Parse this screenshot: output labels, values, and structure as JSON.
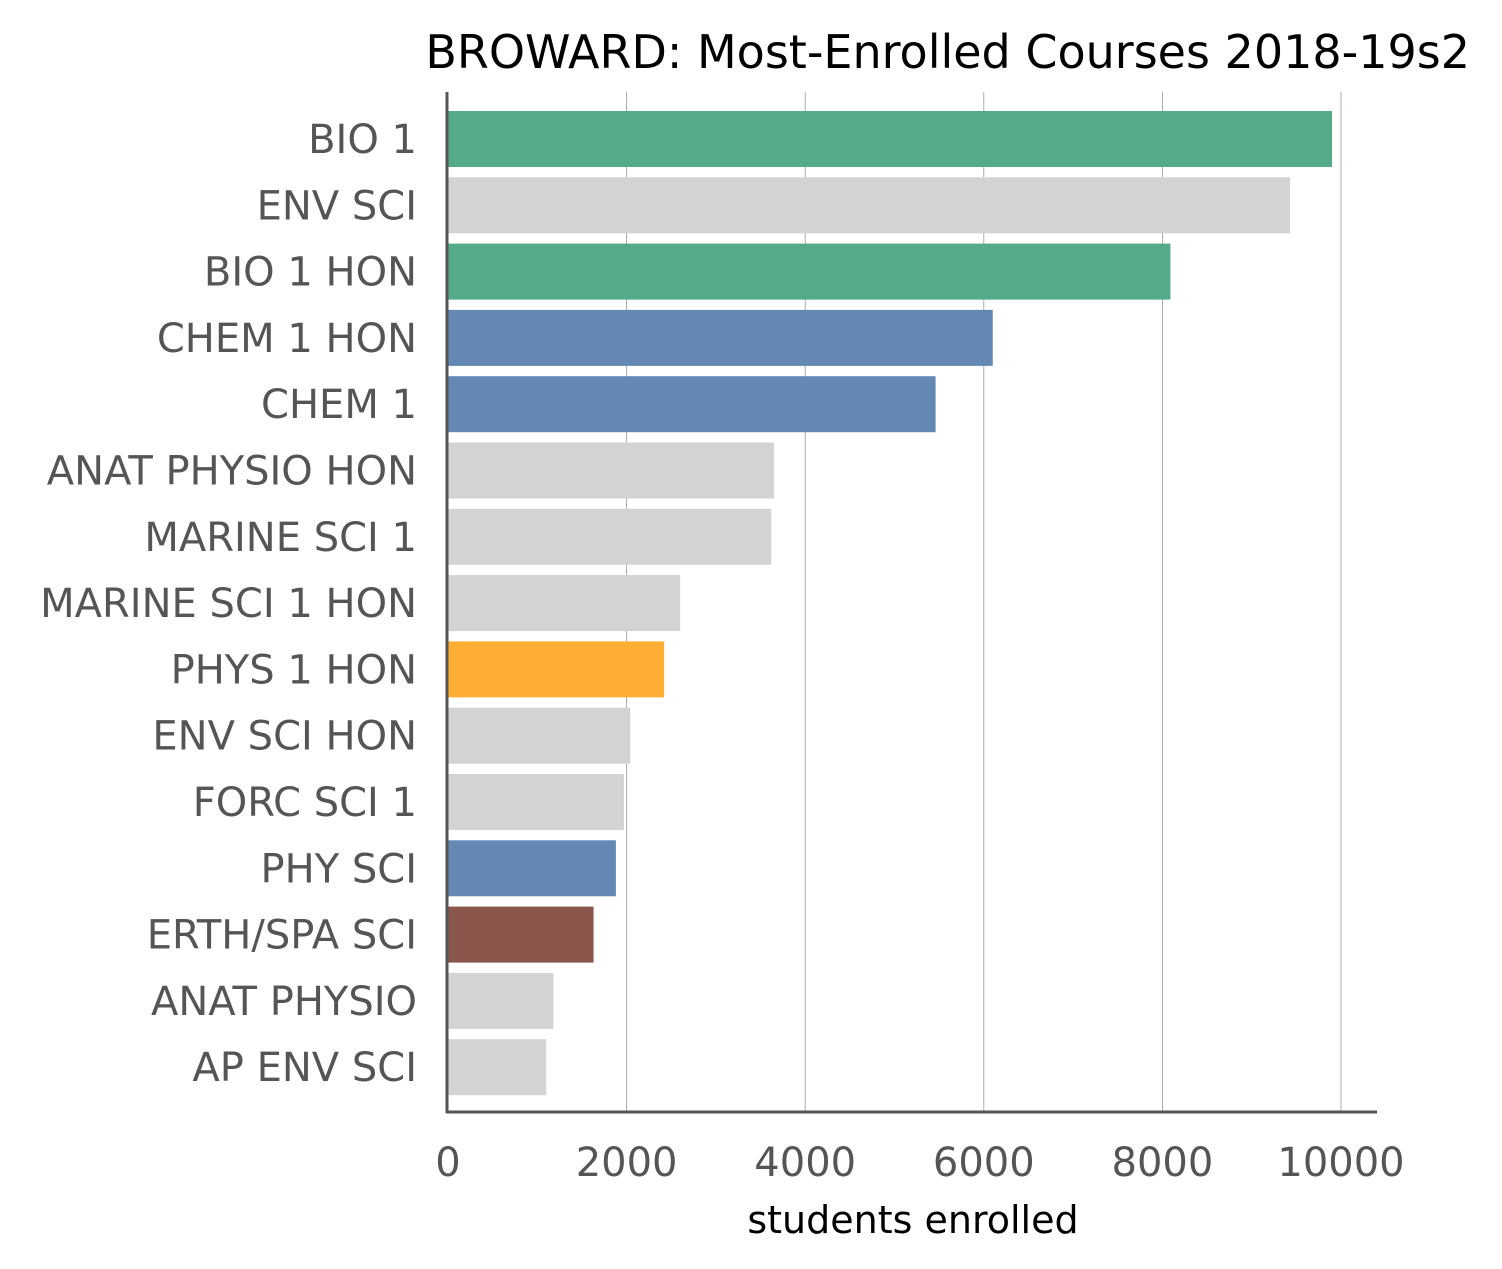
{
  "chart_data": {
    "type": "bar",
    "orientation": "horizontal",
    "title": "BROWARD: Most-Enrolled Courses 2018-19s2",
    "xlabel": "students enrolled",
    "ylabel": "",
    "xlim": [
      0,
      10400
    ],
    "xticks": [
      0,
      2000,
      4000,
      6000,
      8000,
      10000
    ],
    "grid": "vertical",
    "categories": [
      "BIO 1",
      "ENV SCI",
      "BIO 1 HON",
      "CHEM 1 HON",
      "CHEM 1",
      "ANAT PHYSIO HON",
      "MARINE SCI 1",
      "MARINE SCI 1 HON",
      "PHYS 1 HON",
      "ENV SCI HON",
      "FORC SCI 1",
      "PHY SCI",
      "ERTH/SPA SCI",
      "ANAT PHYSIO",
      "AP ENV SCI"
    ],
    "values": [
      9900,
      9430,
      8090,
      6100,
      5460,
      3650,
      3620,
      2600,
      2420,
      2040,
      1970,
      1880,
      1630,
      1180,
      1100
    ],
    "colors": [
      "#55ab87",
      "#d3d3d3",
      "#55ab87",
      "#6288b3",
      "#6288b3",
      "#d3d3d3",
      "#d3d3d3",
      "#d3d3d3",
      "#feae33",
      "#d3d3d3",
      "#d3d3d3",
      "#6288b3",
      "#8b564b",
      "#d3d3d3",
      "#d3d3d3"
    ]
  }
}
